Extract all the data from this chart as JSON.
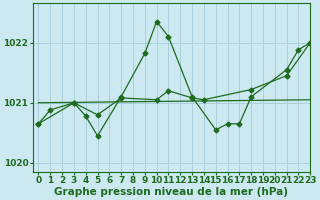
{
  "title": "Graphe pression niveau de la mer (hPa)",
  "bg_color": "#cce8f0",
  "grid_color": "#aacfdc",
  "line_color": "#1e6b1e",
  "xlim": [
    -0.5,
    23
  ],
  "ylim": [
    1019.85,
    1022.65
  ],
  "yticks": [
    1020,
    1021,
    1022
  ],
  "xticks": [
    0,
    1,
    2,
    3,
    4,
    5,
    6,
    7,
    8,
    9,
    10,
    11,
    12,
    13,
    14,
    15,
    16,
    17,
    18,
    19,
    20,
    21,
    22,
    23
  ],
  "line1_x": [
    0,
    1,
    3,
    4,
    5,
    7,
    9,
    10,
    11,
    13,
    15,
    16,
    17,
    18,
    21,
    22,
    23
  ],
  "line1_y": [
    1020.65,
    1020.88,
    1021.0,
    1020.78,
    1020.45,
    1021.1,
    1021.82,
    1022.35,
    1022.1,
    1021.1,
    1020.55,
    1020.65,
    1020.65,
    1021.1,
    1021.55,
    1021.88,
    1022.0
  ],
  "line2_x": [
    0,
    3,
    5,
    7,
    10,
    11,
    13,
    14,
    18,
    21,
    23
  ],
  "line2_y": [
    1020.65,
    1021.0,
    1020.8,
    1021.08,
    1021.05,
    1021.2,
    1021.08,
    1021.05,
    1021.22,
    1021.45,
    1022.0
  ],
  "line3_x": [
    0,
    23
  ],
  "line3_y": [
    1021.0,
    1021.05
  ],
  "xlabel_fontsize": 7.5,
  "tick_fontsize": 6.5
}
